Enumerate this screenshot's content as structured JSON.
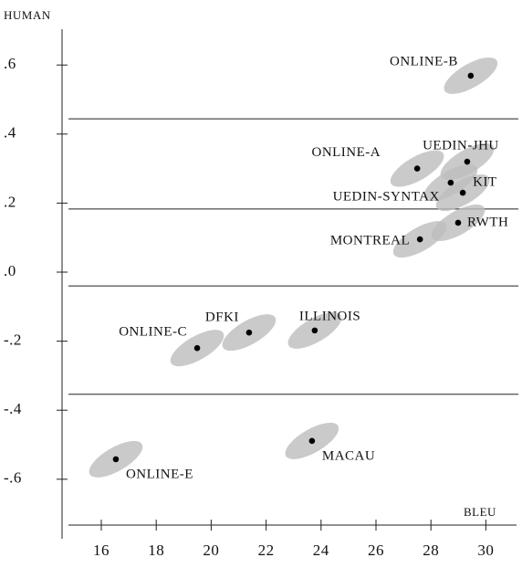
{
  "chart_data": {
    "type": "scatter",
    "xlabel": "BLEU",
    "ylabel": "HUMAN",
    "xlim": [
      14.75,
      31.2
    ],
    "ylim": [
      -0.76,
      0.7
    ],
    "xticks": [
      16,
      18,
      20,
      22,
      24,
      26,
      28,
      30
    ],
    "yticks": [
      {
        "value": 0.6,
        "label": ".6"
      },
      {
        "value": 0.4,
        "label": ".4"
      },
      {
        "value": 0.2,
        "label": ".2"
      },
      {
        "value": 0,
        "label": ".0"
      },
      {
        "value": -0.2,
        "label": "-.2"
      },
      {
        "value": -0.4,
        "label": "-.4"
      },
      {
        "value": -0.6,
        "label": "-.6"
      }
    ],
    "hlines": [
      0.444,
      0.183,
      -0.04,
      -0.354
    ],
    "color": "#000000",
    "ellipse_color": "#bdbdbd",
    "series": [
      {
        "names": [
          "ONLINE-B",
          "ONLINE-A",
          "UEDIN-JHU",
          "UEDIN-SYNTAX",
          "KIT",
          "RWTH",
          "MONTREAL",
          "DFKI",
          "ONLINE-C",
          "ILLINOIS",
          "MACAU",
          "ONLINE-E"
        ],
        "x": [
          29.45,
          27.5,
          29.32,
          28.72,
          29.16,
          28.99,
          27.6,
          21.38,
          19.49,
          23.77,
          23.67,
          16.53
        ],
        "values": [
          0.569,
          0.3,
          0.32,
          0.259,
          0.23,
          0.143,
          0.095,
          -0.175,
          -0.22,
          -0.169,
          -0.489,
          -0.542
        ]
      }
    ]
  }
}
